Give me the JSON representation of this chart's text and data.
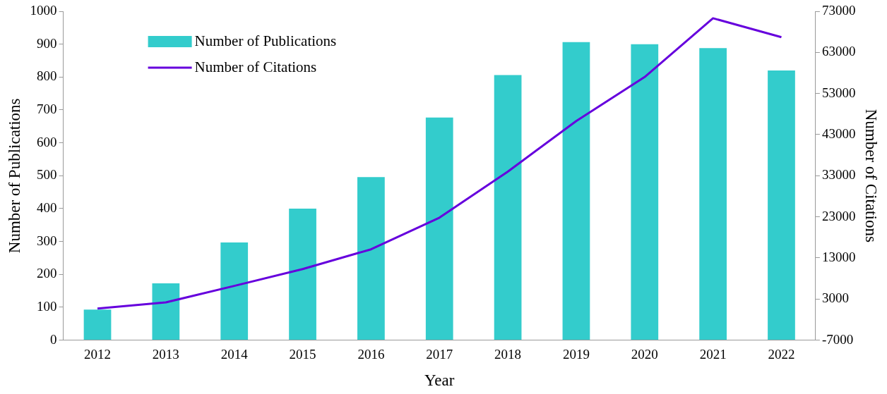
{
  "chart_data": {
    "type": "bar",
    "xlabel": "Year",
    "ylabel": "Number of Publications",
    "y2label": "Number of Citations",
    "categories": [
      "2012",
      "2013",
      "2014",
      "2015",
      "2016",
      "2017",
      "2018",
      "2019",
      "2020",
      "2021",
      "2022"
    ],
    "series": [
      {
        "name": "Number of Publications",
        "color": "#33cccc",
        "values": [
          93,
          173,
          297,
          400,
          496,
          677,
          806,
          906,
          900,
          888,
          820
        ]
      },
      {
        "name": "Number of Citations",
        "type": "line",
        "axis": "y2",
        "color": "#6600dd",
        "values": [
          700,
          2200,
          6200,
          10300,
          15100,
          22800,
          34000,
          46300,
          57000,
          71300,
          66700
        ]
      }
    ],
    "ylim": [
      0,
      1000
    ],
    "yticks": [
      0,
      100,
      200,
      300,
      400,
      500,
      600,
      700,
      800,
      900,
      1000
    ],
    "y2lim": [
      -7000,
      73000
    ],
    "y2ticks": [
      -7000,
      3000,
      13000,
      23000,
      33000,
      43000,
      53000,
      63000,
      73000
    ],
    "grid": false,
    "legend": "top left",
    "marker": "none",
    "line_style": "solid"
  }
}
